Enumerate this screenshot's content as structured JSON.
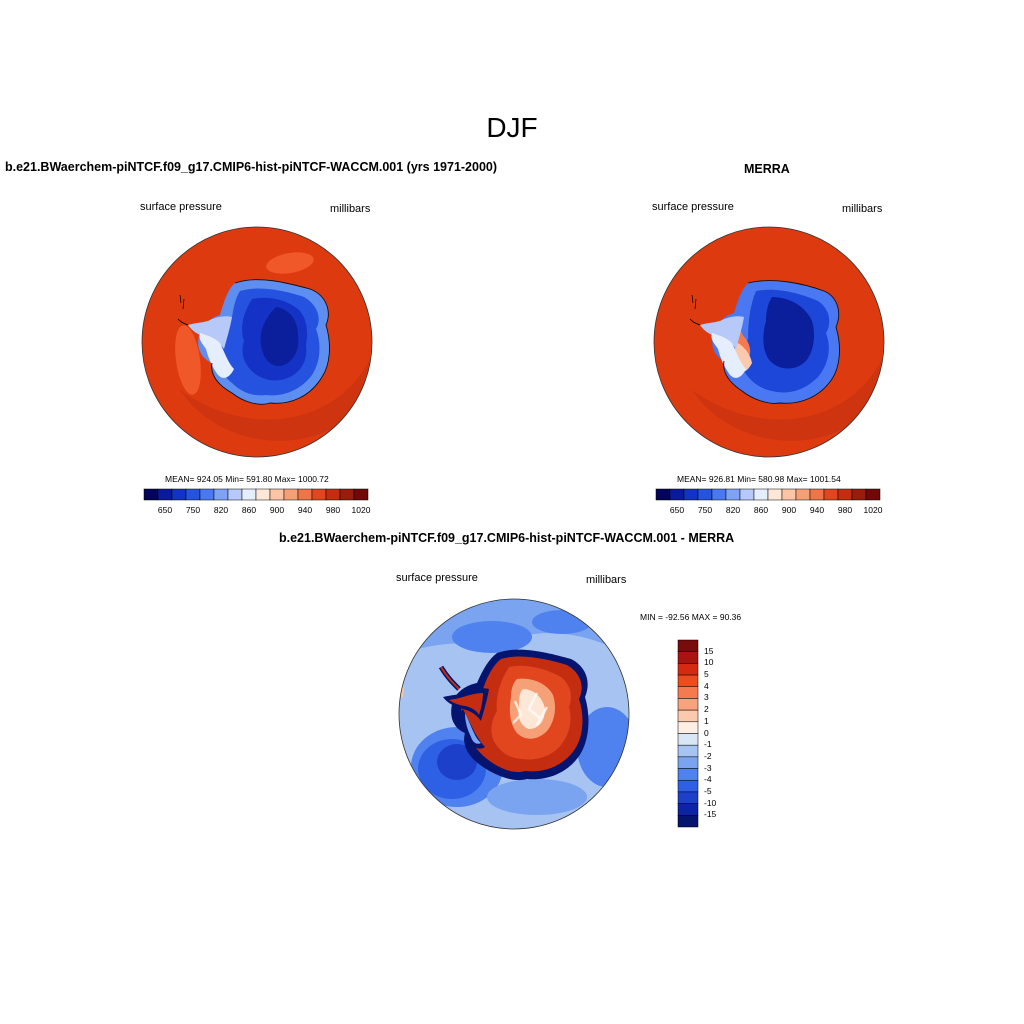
{
  "main_title": "DJF",
  "colors": {
    "ocean": "#dd3a10",
    "ocean_dark": "#cf3410",
    "continent_deep": "#0b1e9c",
    "continent_mid": "#1d47d8",
    "continent_light": "#5d8ef0"
  },
  "panels": {
    "model": {
      "title": "b.e21.BWaerchem-piNTCF.f09_g17.CMIP6-hist-piNTCF-WACCM.001 (yrs 1971-2000)",
      "left_label": "surface pressure",
      "right_label": "millibars",
      "stats": "MEAN= 924.05  Min= 591.80  Max= 1000.72"
    },
    "obs": {
      "title": "MERRA",
      "left_label": "surface pressure",
      "right_label": "millibars",
      "stats": "MEAN= 926.81  Min= 580.98  Max= 1001.54"
    },
    "diff": {
      "title": "b.e21.BWaerchem-piNTCF.f09_g17.CMIP6-hist-piNTCF-WACCM.001 - MERRA",
      "left_label": "surface pressure",
      "right_label": "millibars",
      "stats": "MIN = -92.56 MAX =  90.36"
    }
  },
  "colorbar_main": {
    "colors": [
      "#03045e",
      "#0a1a9e",
      "#1433c6",
      "#2553e0",
      "#4a78f2",
      "#7fa2f6",
      "#b6c9f8",
      "#e4eefc",
      "#fde7d7",
      "#f9c5a6",
      "#f5a077",
      "#ef7448",
      "#e2461f",
      "#c52d10",
      "#9b1c0d",
      "#740808"
    ],
    "ticks": [
      "650",
      "750",
      "820",
      "860",
      "900",
      "940",
      "980",
      "1020"
    ]
  },
  "colorbar_diff": {
    "colors": [
      "#7a0b0b",
      "#a81410",
      "#d42a12",
      "#f04a1f",
      "#f57a4d",
      "#f8a27e",
      "#fbcaae",
      "#fdeee4",
      "#d9e6f5",
      "#a6c3f2",
      "#7aa3f0",
      "#4f82ee",
      "#2e60e6",
      "#1c40c9",
      "#0c23a3",
      "#05146e"
    ],
    "ticks": [
      "15",
      "10",
      "5",
      "4",
      "3",
      "2",
      "1",
      "0",
      "-1",
      "-2",
      "-3",
      "-4",
      "-5",
      "-10",
      "-15"
    ]
  }
}
